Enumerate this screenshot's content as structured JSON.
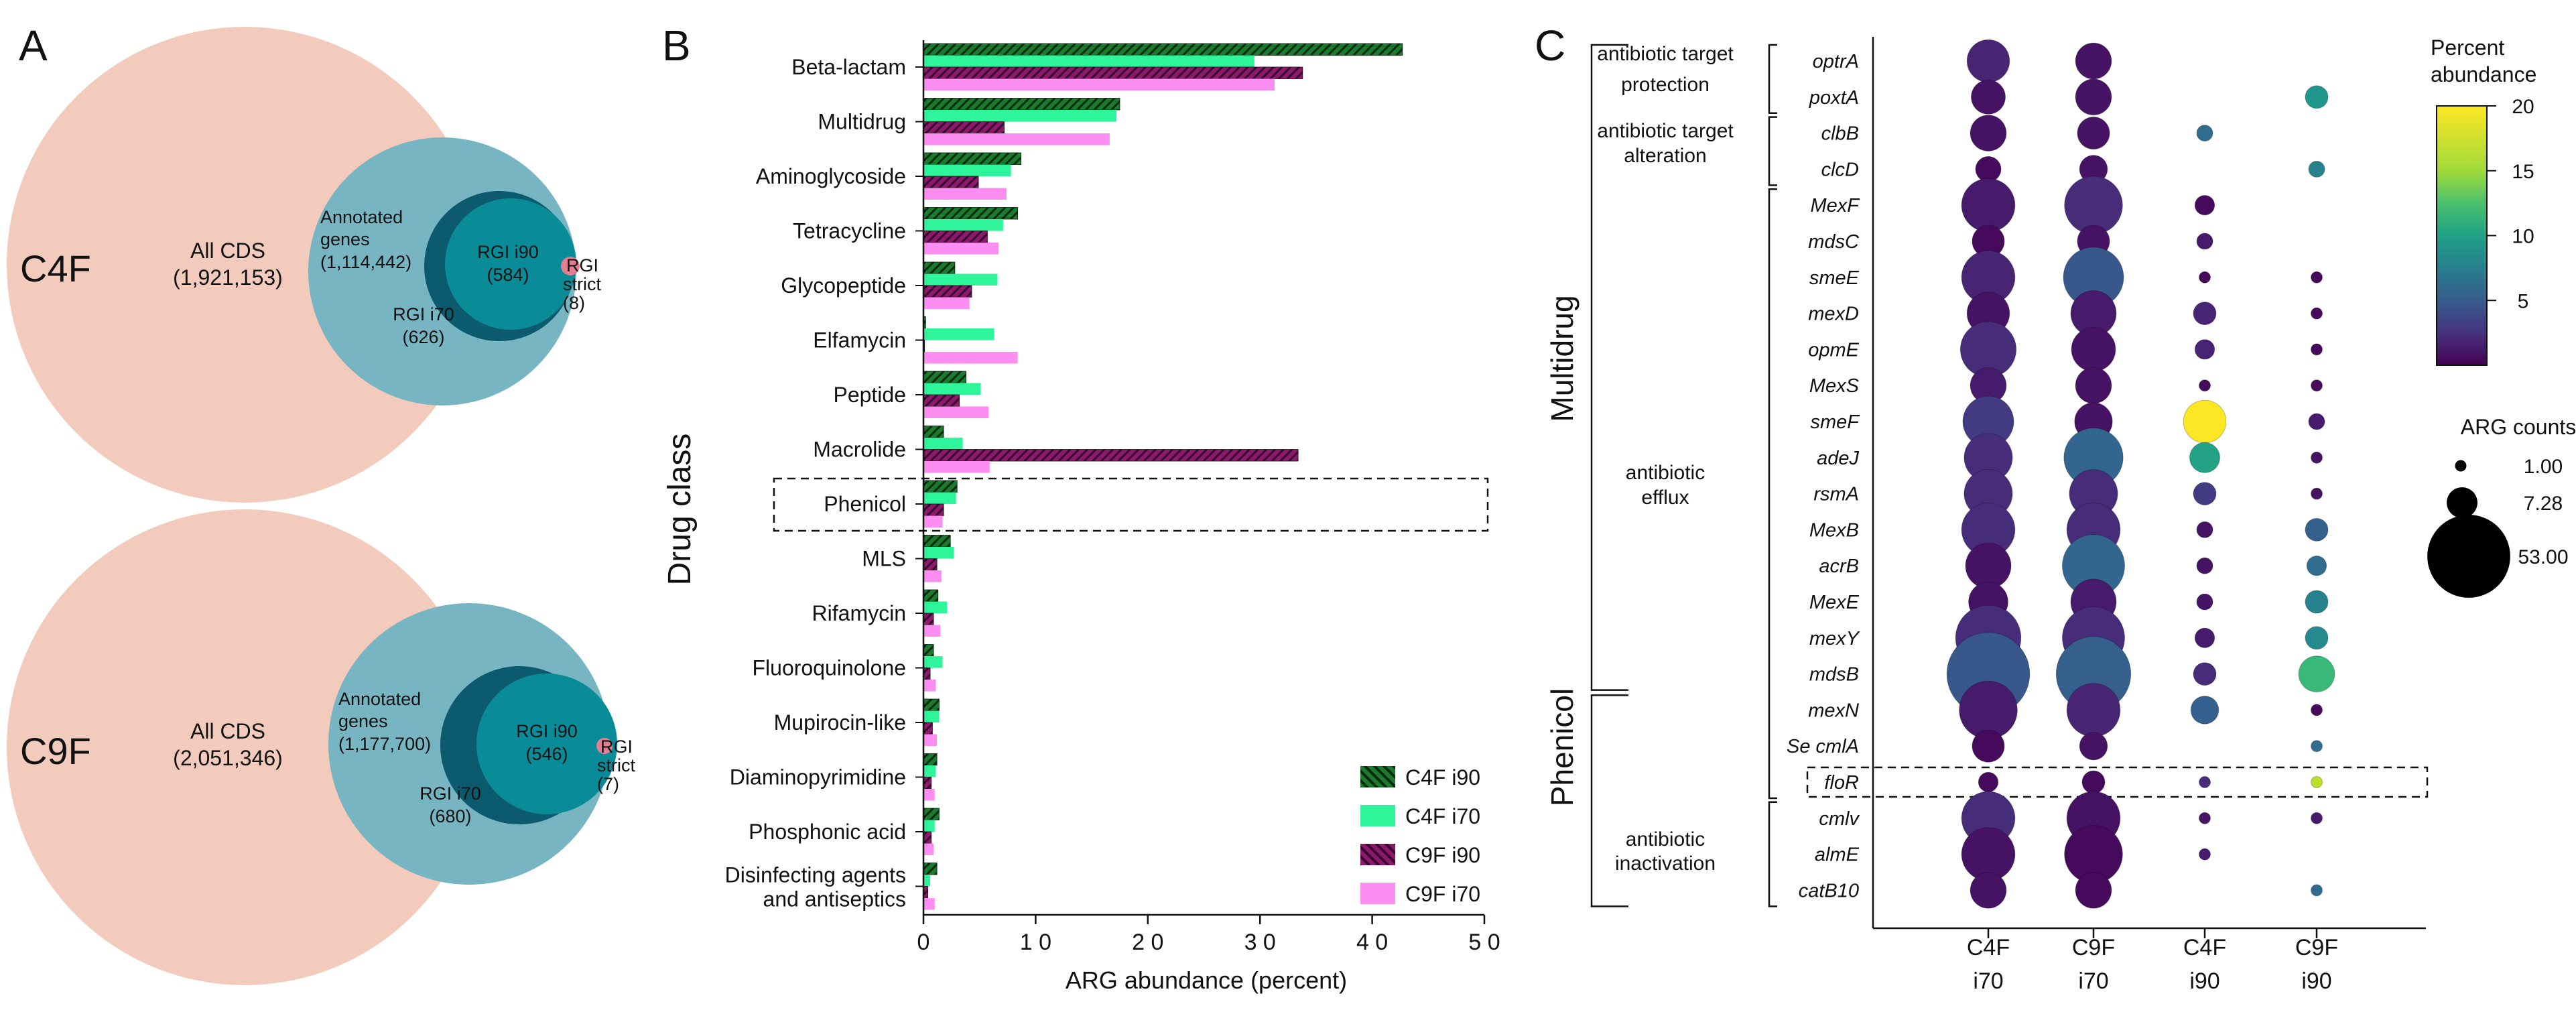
{
  "panels": {
    "a": "A",
    "b": "B",
    "c": "C"
  },
  "venn": {
    "top": {
      "sample": "C4F",
      "all_label": "All CDS",
      "all_count": "(1,921,153)",
      "ann_line1": "Annotated",
      "ann_line2": "genes",
      "ann_count": "(1,114,442)",
      "i70_label": "RGI i70",
      "i70_count": "(626)",
      "i90_label": "RGI i90",
      "i90_count": "(584)",
      "strict_line1": "RGI",
      "strict_line2": "strict",
      "strict_count": "(8)"
    },
    "bottom": {
      "sample": "C9F",
      "all_label": "All CDS",
      "all_count": "(2,051,346)",
      "ann_line1": "Annotated",
      "ann_line2": "genes",
      "ann_count": "(1,177,700)",
      "i70_label": "RGI i70",
      "i70_count": "(680)",
      "i90_label": "RGI i90",
      "i90_count": "(546)",
      "strict_line1": "RGI",
      "strict_line2": "strict",
      "strict_count": "(7)"
    },
    "colors": {
      "all": "#f2cbbd",
      "annotated": "#78b5c2",
      "i70": "#0b5a6e",
      "i90": "#0a8c98",
      "strict": "#e57e92"
    }
  },
  "chart_data": [
    {
      "type": "bar",
      "orientation": "horizontal",
      "ylabel": "Drug class",
      "xlabel": "ARG abundance (percent)",
      "xlim": [
        0,
        50
      ],
      "xticks": [
        0,
        10,
        20,
        30,
        40,
        50
      ],
      "xtick_labels": [
        "0",
        "1 0",
        "2 0",
        "3 0",
        "4 0",
        "5 0"
      ],
      "categories": [
        "Beta-lactam",
        "Multidrug",
        "Aminoglycoside",
        "Tetracycline",
        "Glycopeptide",
        "Elfamycin",
        "Peptide",
        "Macrolide",
        "Phenicol",
        "MLS",
        "Rifamycin",
        "Fluoroquinolone",
        "Mupirocin-like",
        "Diaminopyrimidine",
        "Phosphonic acid",
        "Disinfecting agents and antiseptics"
      ],
      "category_lines": [
        [
          "Beta-lactam"
        ],
        [
          "Multidrug"
        ],
        [
          "Aminoglycoside"
        ],
        [
          "Tetracycline"
        ],
        [
          "Glycopeptide"
        ],
        [
          "Elfamycin"
        ],
        [
          "Peptide"
        ],
        [
          "Macrolide"
        ],
        [
          "Phenicol"
        ],
        [
          "MLS"
        ],
        [
          "Rifamycin"
        ],
        [
          "Fluoroquinolone"
        ],
        [
          "Mupirocin-like"
        ],
        [
          "Diaminopyrimidine"
        ],
        [
          "Phosphonic acid"
        ],
        [
          "Disinfecting agents",
          "and antiseptics"
        ]
      ],
      "highlighted_category": "Phenicol",
      "series": [
        {
          "name": "C4F i90",
          "color": "#1b7a2e",
          "hatched": true,
          "values": [
            42.7,
            17.5,
            8.7,
            8.4,
            2.8,
            0.2,
            3.8,
            1.8,
            3.0,
            2.4,
            1.3,
            0.9,
            1.4,
            1.2,
            1.4,
            1.2
          ]
        },
        {
          "name": "C4F i70",
          "color": "#2ef59a",
          "hatched": false,
          "values": [
            29.5,
            17.2,
            7.8,
            7.1,
            6.6,
            6.3,
            5.1,
            3.5,
            2.9,
            2.7,
            2.1,
            1.7,
            1.4,
            1.1,
            1.0,
            0.6
          ]
        },
        {
          "name": "C9F i90",
          "color": "#8b1a6b",
          "hatched": true,
          "values": [
            33.8,
            7.2,
            4.9,
            5.7,
            4.3,
            0.1,
            3.2,
            33.4,
            1.8,
            1.2,
            0.9,
            0.6,
            0.8,
            0.7,
            0.7,
            0.4
          ]
        },
        {
          "name": "C9F i70",
          "color": "#fb8ef0",
          "hatched": false,
          "values": [
            31.3,
            16.6,
            7.4,
            6.7,
            4.1,
            8.4,
            5.8,
            5.9,
            1.7,
            1.6,
            1.5,
            1.1,
            1.2,
            1.0,
            0.9,
            1.0
          ]
        }
      ]
    },
    {
      "type": "scatter",
      "subtype": "dot-plot",
      "x_categories": [
        [
          "C4F",
          "i70"
        ],
        [
          "C9F",
          "i70"
        ],
        [
          "C4F",
          "i90"
        ],
        [
          "C9F",
          "i90"
        ]
      ],
      "genes": [
        "optrA",
        "poxtA",
        "clbB",
        "clcD",
        "MexF",
        "mdsC",
        "smeE",
        "mexD",
        "opmE",
        "MexS",
        "smeF",
        "adeJ",
        "rsmA",
        "MexB",
        "acrB",
        "MexE",
        "mexY",
        "mdsB",
        "mexN",
        "Se cmlA",
        "floR",
        "cmlv",
        "almE",
        "catB10"
      ],
      "highlighted_gene": "floR",
      "mechanisms": [
        {
          "lines": [
            "antibiotic target",
            "protection"
          ]
        },
        {
          "lines": [
            "antibiotic target",
            "alteration"
          ]
        },
        {
          "lines": [
            "antibiotic",
            "efflux"
          ]
        },
        {
          "lines": [
            "antibiotic",
            "inactivation"
          ]
        }
      ],
      "drug_groups": [
        "Multidrug",
        "Phenicol"
      ],
      "color_scale": {
        "title_lines": [
          "Percent",
          "abundance"
        ],
        "ticks": [
          "20",
          "15",
          "10",
          "5"
        ],
        "range": [
          0,
          20
        ],
        "colormap": "viridis"
      },
      "size_scale": {
        "title": "ARG counts",
        "values": [
          1.0,
          7.28,
          53.0
        ],
        "labels": [
          "1.00",
          "7.28",
          "53.00"
        ]
      },
      "cells": [
        {
          "gene": "optrA",
          "x": 0,
          "count": 14,
          "pct": 2.0
        },
        {
          "gene": "optrA",
          "x": 1,
          "count": 10,
          "pct": 1.0
        },
        {
          "gene": "poxtA",
          "x": 0,
          "count": 9,
          "pct": 1.0
        },
        {
          "gene": "poxtA",
          "x": 1,
          "count": 10,
          "pct": 1.0
        },
        {
          "gene": "poxtA",
          "x": 3,
          "count": 4,
          "pct": 10.5
        },
        {
          "gene": "clbB",
          "x": 0,
          "count": 10,
          "pct": 1.0
        },
        {
          "gene": "clbB",
          "x": 1,
          "count": 8,
          "pct": 1.0
        },
        {
          "gene": "clbB",
          "x": 2,
          "count": 2,
          "pct": 7.0
        },
        {
          "gene": "clcD",
          "x": 0,
          "count": 5,
          "pct": 0.5
        },
        {
          "gene": "clcD",
          "x": 1,
          "count": 6,
          "pct": 1.0
        },
        {
          "gene": "clcD",
          "x": 3,
          "count": 2,
          "pct": 9.0
        },
        {
          "gene": "MexF",
          "x": 0,
          "count": 22,
          "pct": 1.5
        },
        {
          "gene": "MexF",
          "x": 1,
          "count": 26,
          "pct": 2.5
        },
        {
          "gene": "MexF",
          "x": 2,
          "count": 3,
          "pct": 0.5
        },
        {
          "gene": "mdsC",
          "x": 0,
          "count": 8,
          "pct": 0.5
        },
        {
          "gene": "mdsC",
          "x": 1,
          "count": 8,
          "pct": 1.0
        },
        {
          "gene": "mdsC",
          "x": 2,
          "count": 2,
          "pct": 1.5
        },
        {
          "gene": "smeE",
          "x": 0,
          "count": 22,
          "pct": 2.0
        },
        {
          "gene": "smeE",
          "x": 1,
          "count": 28,
          "pct": 5.5
        },
        {
          "gene": "smeE",
          "x": 2,
          "count": 1,
          "pct": 0.5
        },
        {
          "gene": "smeE",
          "x": 3,
          "count": 1,
          "pct": 0.5
        },
        {
          "gene": "mexD",
          "x": 0,
          "count": 14,
          "pct": 1.0
        },
        {
          "gene": "mexD",
          "x": 1,
          "count": 16,
          "pct": 1.5
        },
        {
          "gene": "mexD",
          "x": 2,
          "count": 4,
          "pct": 2.0
        },
        {
          "gene": "mexD",
          "x": 3,
          "count": 1,
          "pct": 0.5
        },
        {
          "gene": "opmE",
          "x": 0,
          "count": 24,
          "pct": 2.5
        },
        {
          "gene": "opmE",
          "x": 1,
          "count": 15,
          "pct": 1.0
        },
        {
          "gene": "opmE",
          "x": 2,
          "count": 3,
          "pct": 2.0
        },
        {
          "gene": "opmE",
          "x": 3,
          "count": 1,
          "pct": 0.5
        },
        {
          "gene": "MexS",
          "x": 0,
          "count": 10,
          "pct": 1.5
        },
        {
          "gene": "MexS",
          "x": 1,
          "count": 10,
          "pct": 1.0
        },
        {
          "gene": "MexS",
          "x": 2,
          "count": 1,
          "pct": 0.5
        },
        {
          "gene": "MexS",
          "x": 3,
          "count": 1,
          "pct": 0.5
        },
        {
          "gene": "smeF",
          "x": 0,
          "count": 20,
          "pct": 3.5
        },
        {
          "gene": "smeF",
          "x": 1,
          "count": 11,
          "pct": 1.0
        },
        {
          "gene": "smeF",
          "x": 2,
          "count": 14,
          "pct": 20.0
        },
        {
          "gene": "smeF",
          "x": 3,
          "count": 2,
          "pct": 1.5
        },
        {
          "gene": "adeJ",
          "x": 0,
          "count": 18,
          "pct": 2.5
        },
        {
          "gene": "adeJ",
          "x": 1,
          "count": 27,
          "pct": 6.5
        },
        {
          "gene": "adeJ",
          "x": 2,
          "count": 7,
          "pct": 11.5
        },
        {
          "gene": "adeJ",
          "x": 3,
          "count": 1,
          "pct": 1.0
        },
        {
          "gene": "rsmA",
          "x": 0,
          "count": 18,
          "pct": 2.5
        },
        {
          "gene": "rsmA",
          "x": 1,
          "count": 18,
          "pct": 2.5
        },
        {
          "gene": "rsmA",
          "x": 2,
          "count": 4,
          "pct": 3.5
        },
        {
          "gene": "rsmA",
          "x": 3,
          "count": 1,
          "pct": 1.0
        },
        {
          "gene": "MexB",
          "x": 0,
          "count": 22,
          "pct": 2.5
        },
        {
          "gene": "MexB",
          "x": 1,
          "count": 22,
          "pct": 2.5
        },
        {
          "gene": "MexB",
          "x": 2,
          "count": 2,
          "pct": 1.0
        },
        {
          "gene": "MexB",
          "x": 3,
          "count": 4,
          "pct": 6.0
        },
        {
          "gene": "acrB",
          "x": 0,
          "count": 16,
          "pct": 1.0
        },
        {
          "gene": "acrB",
          "x": 1,
          "count": 30,
          "pct": 6.5
        },
        {
          "gene": "acrB",
          "x": 2,
          "count": 2,
          "pct": 1.0
        },
        {
          "gene": "acrB",
          "x": 3,
          "count": 3,
          "pct": 7.0
        },
        {
          "gene": "MexE",
          "x": 0,
          "count": 12,
          "pct": 1.0
        },
        {
          "gene": "MexE",
          "x": 1,
          "count": 16,
          "pct": 1.5
        },
        {
          "gene": "MexE",
          "x": 2,
          "count": 2,
          "pct": 1.0
        },
        {
          "gene": "MexE",
          "x": 3,
          "count": 4,
          "pct": 9.0
        },
        {
          "gene": "mexY",
          "x": 0,
          "count": 33,
          "pct": 2.5
        },
        {
          "gene": "mexY",
          "x": 1,
          "count": 30,
          "pct": 2.5
        },
        {
          "gene": "mexY",
          "x": 2,
          "count": 3,
          "pct": 1.5
        },
        {
          "gene": "mexY",
          "x": 3,
          "count": 4,
          "pct": 9.5
        },
        {
          "gene": "mdsB",
          "x": 0,
          "count": 53,
          "pct": 5.5
        },
        {
          "gene": "mdsB",
          "x": 1,
          "count": 43,
          "pct": 6.0
        },
        {
          "gene": "mdsB",
          "x": 2,
          "count": 4,
          "pct": 2.5
        },
        {
          "gene": "mdsB",
          "x": 3,
          "count": 10,
          "pct": 13.5
        },
        {
          "gene": "mexN",
          "x": 0,
          "count": 26,
          "pct": 1.5
        },
        {
          "gene": "mexN",
          "x": 1,
          "count": 22,
          "pct": 2.0
        },
        {
          "gene": "mexN",
          "x": 2,
          "count": 6,
          "pct": 6.0
        },
        {
          "gene": "mexN",
          "x": 3,
          "count": 1,
          "pct": 0.5
        },
        {
          "gene": "Se cmlA",
          "x": 0,
          "count": 8,
          "pct": 0.5
        },
        {
          "gene": "Se cmlA",
          "x": 1,
          "count": 6,
          "pct": 1.0
        },
        {
          "gene": "Se cmlA",
          "x": 3,
          "count": 1,
          "pct": 7.0
        },
        {
          "gene": "floR",
          "x": 0,
          "count": 3,
          "pct": 0.5
        },
        {
          "gene": "floR",
          "x": 1,
          "count": 4,
          "pct": 0.5
        },
        {
          "gene": "floR",
          "x": 2,
          "count": 1,
          "pct": 2.5
        },
        {
          "gene": "floR",
          "x": 3,
          "count": 1,
          "pct": 18.0
        },
        {
          "gene": "cmlv",
          "x": 0,
          "count": 22,
          "pct": 2.5
        },
        {
          "gene": "cmlv",
          "x": 1,
          "count": 22,
          "pct": 1.0
        },
        {
          "gene": "cmlv",
          "x": 2,
          "count": 1,
          "pct": 1.0
        },
        {
          "gene": "cmlv",
          "x": 3,
          "count": 1,
          "pct": 1.5
        },
        {
          "gene": "almE",
          "x": 0,
          "count": 22,
          "pct": 1.0
        },
        {
          "gene": "almE",
          "x": 1,
          "count": 26,
          "pct": 0.5
        },
        {
          "gene": "almE",
          "x": 2,
          "count": 1,
          "pct": 1.5
        },
        {
          "gene": "catB10",
          "x": 0,
          "count": 10,
          "pct": 1.0
        },
        {
          "gene": "catB10",
          "x": 1,
          "count": 10,
          "pct": 0.5
        },
        {
          "gene": "catB10",
          "x": 3,
          "count": 1,
          "pct": 7.0
        }
      ]
    }
  ]
}
